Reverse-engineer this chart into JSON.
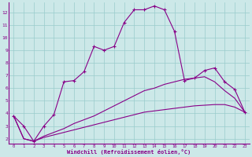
{
  "xlabel": "Windchill (Refroidissement éolien,°C)",
  "background_color": "#cce8e8",
  "grid_color": "#99cccc",
  "line_color": "#880088",
  "xlim": [
    -0.5,
    23.5
  ],
  "ylim": [
    1.6,
    12.8
  ],
  "yticks": [
    2,
    3,
    4,
    5,
    6,
    7,
    8,
    9,
    10,
    11,
    12
  ],
  "xticks": [
    0,
    1,
    2,
    3,
    4,
    5,
    6,
    7,
    8,
    9,
    10,
    11,
    12,
    13,
    14,
    15,
    16,
    17,
    18,
    19,
    20,
    21,
    22,
    23
  ],
  "series1_x": [
    0,
    1,
    2,
    3,
    4,
    5,
    6,
    7,
    8,
    9,
    10,
    11,
    12,
    13,
    14,
    15,
    16,
    17,
    18,
    19,
    20,
    21,
    22,
    23
  ],
  "series1_y": [
    3.8,
    3.0,
    1.8,
    3.0,
    3.9,
    6.5,
    6.6,
    7.3,
    9.3,
    9.0,
    9.3,
    11.2,
    12.2,
    12.2,
    12.5,
    12.2,
    10.5,
    6.6,
    6.8,
    7.4,
    7.6,
    6.5,
    5.9,
    4.1
  ],
  "series2_x": [
    0,
    1,
    2,
    3,
    4,
    5,
    6,
    7,
    8,
    9,
    10,
    11,
    12,
    13,
    14,
    15,
    16,
    17,
    18,
    19,
    20,
    21,
    22,
    23
  ],
  "series2_y": [
    3.8,
    2.0,
    1.8,
    2.2,
    2.5,
    2.8,
    3.2,
    3.5,
    3.8,
    4.2,
    4.6,
    5.0,
    5.4,
    5.8,
    6.0,
    6.3,
    6.5,
    6.7,
    6.8,
    6.9,
    6.5,
    5.8,
    5.2,
    4.1
  ],
  "series3_x": [
    0,
    1,
    2,
    3,
    4,
    5,
    6,
    7,
    8,
    9,
    10,
    11,
    12,
    13,
    14,
    15,
    16,
    17,
    18,
    19,
    20,
    21,
    22,
    23
  ],
  "series3_y": [
    3.8,
    2.0,
    1.8,
    2.1,
    2.3,
    2.5,
    2.7,
    2.9,
    3.1,
    3.3,
    3.5,
    3.7,
    3.9,
    4.1,
    4.2,
    4.3,
    4.4,
    4.5,
    4.6,
    4.65,
    4.7,
    4.7,
    4.5,
    4.1
  ]
}
